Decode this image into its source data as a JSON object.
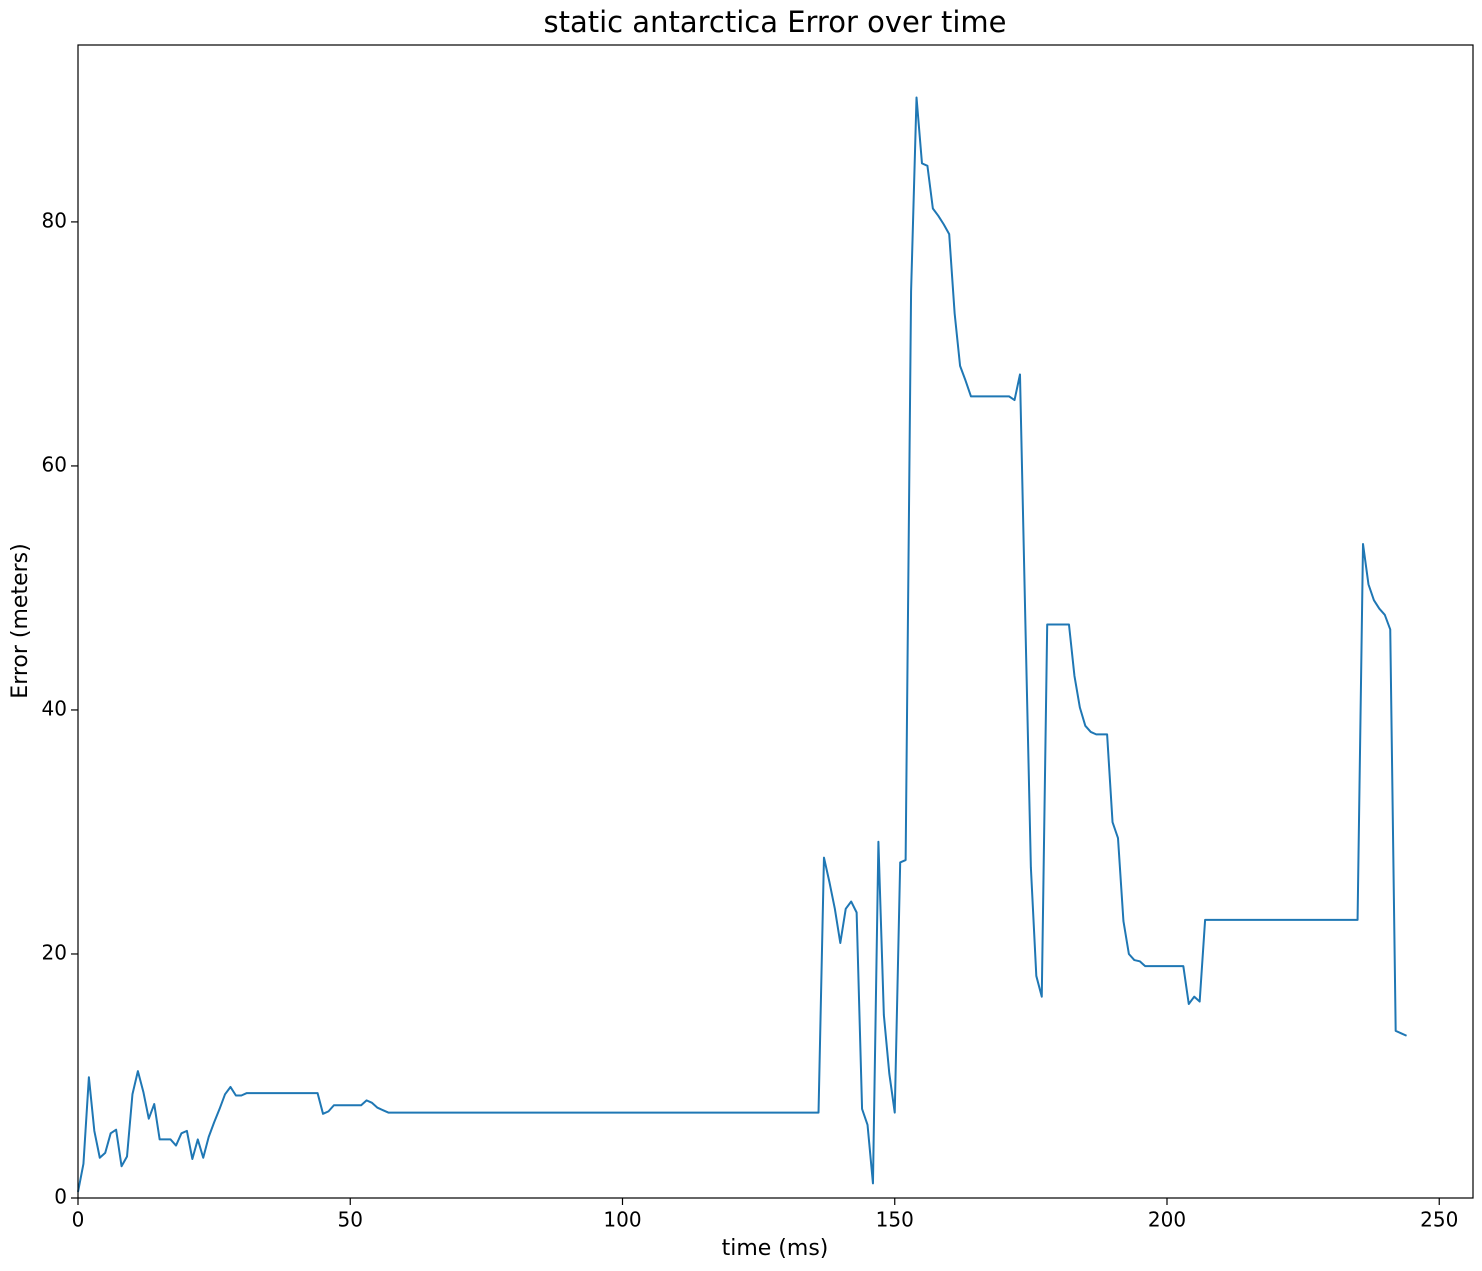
{
  "chart_data": {
    "type": "line",
    "title": "static antarctica Error over time",
    "x_label": "time (ms)",
    "y_label": "Error (meters)",
    "xlim": [
      0,
      256.2
    ],
    "ylim": [
      0,
      94.5
    ],
    "xticks": [
      0,
      50,
      100,
      150,
      200,
      250
    ],
    "yticks": [
      0,
      20,
      40,
      60,
      80
    ],
    "grid": false,
    "series": [
      {
        "color": "#1f77b4",
        "x": [
          0,
          1,
          2,
          3,
          4,
          5,
          6,
          7,
          8,
          9,
          10,
          11,
          12,
          13,
          14,
          15,
          16,
          17,
          18,
          19,
          20,
          21,
          22,
          23,
          24,
          25,
          26,
          27,
          28,
          29,
          30,
          31,
          32,
          33,
          34,
          35,
          36,
          37,
          38,
          39,
          40,
          41,
          42,
          43,
          44,
          45,
          46,
          47,
          48,
          49,
          50,
          51,
          52,
          53,
          54,
          55,
          56,
          57,
          58,
          59,
          60,
          61,
          62,
          63,
          64,
          65,
          66,
          67,
          68,
          69,
          70,
          71,
          72,
          73,
          74,
          75,
          76,
          77,
          78,
          79,
          80,
          81,
          82,
          83,
          84,
          85,
          86,
          87,
          88,
          89,
          90,
          91,
          92,
          93,
          94,
          95,
          96,
          97,
          98,
          99,
          100,
          101,
          102,
          103,
          104,
          105,
          106,
          107,
          108,
          109,
          110,
          111,
          112,
          113,
          114,
          115,
          116,
          117,
          118,
          119,
          120,
          121,
          122,
          123,
          124,
          125,
          126,
          127,
          128,
          129,
          130,
          131,
          132,
          133,
          134,
          135,
          136,
          137,
          138,
          139,
          140,
          141,
          142,
          143,
          144,
          145,
          146,
          147,
          148,
          149,
          150,
          151,
          152,
          153,
          154,
          155,
          156,
          157,
          158,
          159,
          160,
          161,
          162,
          163,
          164,
          165,
          166,
          167,
          168,
          169,
          170,
          171,
          172,
          173,
          174,
          175,
          176,
          177,
          178,
          179,
          180,
          181,
          182,
          183,
          184,
          185,
          186,
          187,
          188,
          189,
          190,
          191,
          192,
          193,
          194,
          195,
          196,
          197,
          198,
          199,
          200,
          201,
          202,
          203,
          204,
          205,
          206,
          207,
          208,
          209,
          210,
          211,
          212,
          213,
          214,
          215,
          216,
          217,
          218,
          219,
          220,
          221,
          222,
          223,
          224,
          225,
          226,
          227,
          228,
          229,
          230,
          231,
          232,
          233,
          234,
          235,
          236,
          237,
          238,
          239,
          240,
          241,
          242,
          243,
          244
        ],
        "values": [
          0.5,
          2.8,
          9.9,
          5.5,
          3.3,
          3.7,
          5.3,
          5.6,
          2.6,
          3.4,
          8.5,
          10.4,
          8.7,
          6.5,
          7.7,
          4.8,
          4.8,
          4.8,
          4.3,
          5.3,
          5.5,
          3.2,
          4.8,
          3.3,
          5.0,
          6.2,
          7.3,
          8.5,
          9.1,
          8.4,
          8.4,
          8.6,
          8.6,
          8.6,
          8.6,
          8.6,
          8.6,
          8.6,
          8.6,
          8.6,
          8.6,
          8.6,
          8.6,
          8.6,
          8.6,
          6.9,
          7.1,
          7.6,
          7.6,
          7.6,
          7.6,
          7.6,
          7.6,
          8.0,
          7.8,
          7.4,
          7.2,
          7.0,
          7.0,
          7.0,
          7.0,
          7.0,
          7.0,
          7.0,
          7.0,
          7.0,
          7.0,
          7.0,
          7.0,
          7.0,
          7.0,
          7.0,
          7.0,
          7.0,
          7.0,
          7.0,
          7.0,
          7.0,
          7.0,
          7.0,
          7.0,
          7.0,
          7.0,
          7.0,
          7.0,
          7.0,
          7.0,
          7.0,
          7.0,
          7.0,
          7.0,
          7.0,
          7.0,
          7.0,
          7.0,
          7.0,
          7.0,
          7.0,
          7.0,
          7.0,
          7.0,
          7.0,
          7.0,
          7.0,
          7.0,
          7.0,
          7.0,
          7.0,
          7.0,
          7.0,
          7.0,
          7.0,
          7.0,
          7.0,
          7.0,
          7.0,
          7.0,
          7.0,
          7.0,
          7.0,
          7.0,
          7.0,
          7.0,
          7.0,
          7.0,
          7.0,
          7.0,
          7.0,
          7.0,
          7.0,
          7.0,
          7.0,
          7.0,
          7.0,
          7.0,
          7.0,
          7.0,
          27.9,
          25.9,
          23.7,
          20.9,
          23.7,
          24.3,
          23.4,
          7.3,
          6.0,
          1.2,
          29.2,
          15.0,
          10.2,
          7.0,
          27.5,
          27.7,
          74.3,
          90.2,
          84.8,
          84.6,
          81.1,
          80.5,
          79.8,
          79.0,
          72.5,
          68.2,
          67.0,
          65.7,
          65.7,
          65.7,
          65.7,
          65.7,
          65.7,
          65.7,
          65.7,
          65.4,
          67.5,
          47.0,
          27.1,
          18.2,
          16.5,
          47.0,
          47.0,
          47.0,
          47.0,
          47.0,
          42.8,
          40.2,
          38.7,
          38.2,
          38.0,
          38.0,
          38.0,
          30.8,
          29.5,
          22.7,
          20.0,
          19.5,
          19.4,
          19.0,
          19.0,
          19.0,
          19.0,
          19.0,
          19.0,
          19.0,
          19.0,
          15.9,
          16.5,
          16.1,
          22.8,
          22.8,
          22.8,
          22.8,
          22.8,
          22.8,
          22.8,
          22.8,
          22.8,
          22.8,
          22.8,
          22.8,
          22.8,
          22.8,
          22.8,
          22.8,
          22.8,
          22.8,
          22.8,
          22.8,
          22.8,
          22.8,
          22.8,
          22.8,
          22.8,
          22.8,
          22.8,
          22.8,
          22.8,
          53.6,
          50.3,
          49.0,
          48.3,
          47.8,
          46.6,
          13.7,
          13.5,
          13.3
        ]
      }
    ]
  }
}
